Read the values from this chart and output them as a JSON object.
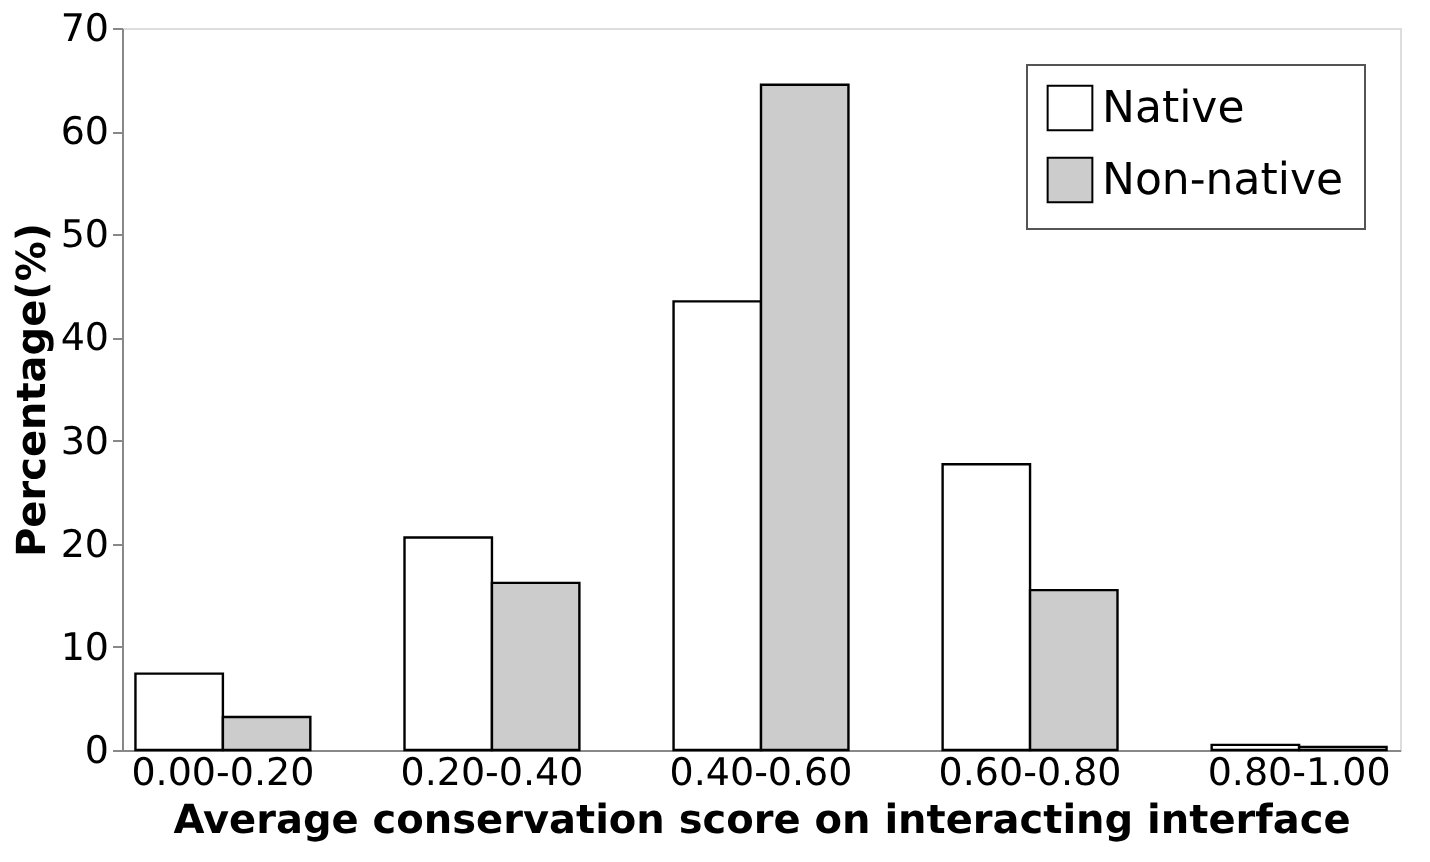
{
  "chart_data": {
    "type": "bar",
    "xlabel": "Average conservation score on interacting interface",
    "ylabel": "Percentage(%)",
    "categories": [
      "0.00-0.20",
      "0.20-0.40",
      "0.40-0.60",
      "0.60-0.80",
      "0.80-1.00"
    ],
    "series": [
      {
        "name": "Native",
        "color": "#ffffff",
        "values": [
          7.4,
          20.6,
          43.5,
          27.7,
          0.5
        ]
      },
      {
        "name": "Non-native",
        "color": "#cccccc",
        "values": [
          3.2,
          16.2,
          64.5,
          15.5,
          0.3
        ]
      }
    ],
    "ylim": [
      0,
      70
    ],
    "yticks": [
      0,
      10,
      20,
      30,
      40,
      50,
      60,
      70
    ],
    "grid": false,
    "legend": "top right"
  }
}
